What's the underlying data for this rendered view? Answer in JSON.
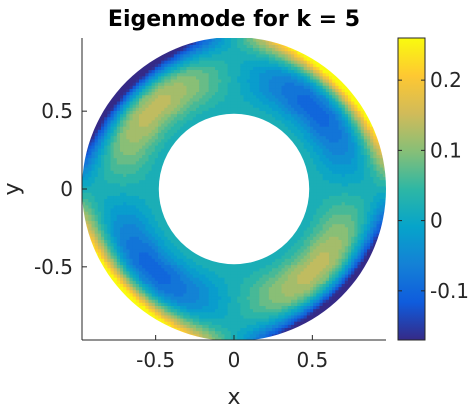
{
  "chart_data": {
    "type": "heatmap",
    "title": "Eigenmode for k = 5",
    "xlabel": "x",
    "ylabel": "y",
    "xlim": [
      -0.97,
      0.97
    ],
    "ylim": [
      -0.97,
      0.97
    ],
    "x_ticks": [
      -0.5,
      0,
      0.5
    ],
    "x_tick_labels": [
      "-0.5",
      "0",
      "0.5"
    ],
    "y_ticks": [
      0.5,
      0,
      -0.5
    ],
    "y_tick_labels": [
      "0.5",
      "0",
      "-0.5"
    ],
    "domain": {
      "shape": "annulus",
      "inner_radius": 0.48,
      "outer_radius": 0.97
    },
    "colorbar": {
      "colormap": "parula",
      "range": [
        -0.17,
        0.26
      ],
      "ticks": [
        0.2,
        0.1,
        0,
        -0.1
      ],
      "tick_labels": [
        "0.2",
        "0.1",
        "0",
        "-0.1"
      ]
    },
    "colormap_stops": [
      "#352a87",
      "#0f5cdd",
      "#1481d6",
      "#06a4ca",
      "#2eb7a4",
      "#87bf77",
      "#d1bb59",
      "#fec832",
      "#f9fb0e"
    ],
    "grid": false
  }
}
